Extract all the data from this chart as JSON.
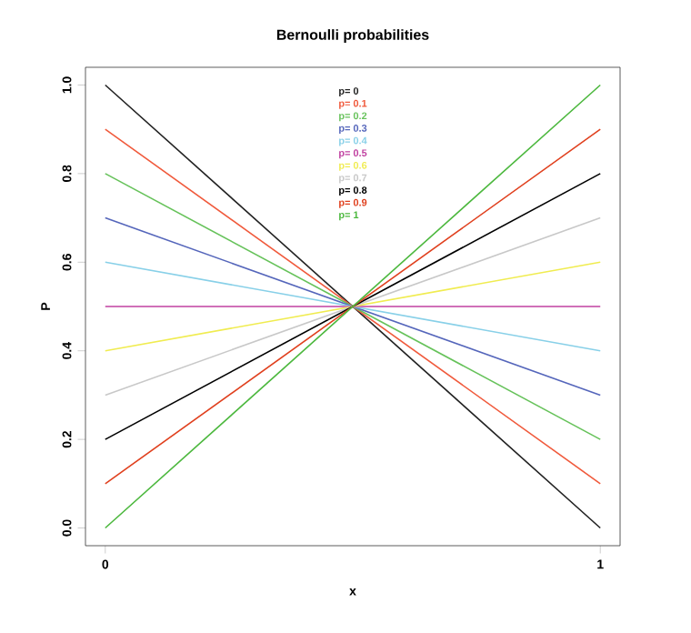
{
  "chart_data": {
    "type": "line",
    "title": "Bernoulli probabilities",
    "xlabel": "x",
    "ylabel": "P",
    "x": [
      0,
      1
    ],
    "xlim": [
      -0.04,
      1.04
    ],
    "ylim": [
      -0.04,
      1.04
    ],
    "xticks": [
      0,
      1
    ],
    "yticks": [
      {
        "value": 0,
        "label": "0.0"
      },
      0.2,
      0.4,
      0.6,
      0.8,
      {
        "value": 1,
        "label": "1.0"
      }
    ],
    "legend": "top",
    "marker": "none",
    "line_style": "solid",
    "series": [
      {
        "name": "p= 0",
        "color": "#222222",
        "values": [
          1,
          0
        ]
      },
      {
        "name": "p= 0.1",
        "color": "#f05a3c",
        "values": [
          0.9,
          0.1
        ]
      },
      {
        "name": "p= 0.2",
        "color": "#66c25a",
        "values": [
          0.8,
          0.2
        ]
      },
      {
        "name": "p= 0.3",
        "color": "#5566bb",
        "values": [
          0.7,
          0.3
        ]
      },
      {
        "name": "p= 0.4",
        "color": "#88d0e8",
        "values": [
          0.6,
          0.4
        ]
      },
      {
        "name": "p= 0.5",
        "color": "#c040a0",
        "values": [
          0.5,
          0.5
        ]
      },
      {
        "name": "p= 0.6",
        "color": "#f0ec50",
        "values": [
          0.4,
          0.6
        ]
      },
      {
        "name": "p= 0.7",
        "color": "#c8c8c8",
        "values": [
          0.3,
          0.7
        ]
      },
      {
        "name": "p= 0.8",
        "color": "#000000",
        "values": [
          0.2,
          0.8
        ]
      },
      {
        "name": "p= 0.9",
        "color": "#e0401e",
        "values": [
          0.1,
          0.9
        ]
      },
      {
        "name": "p= 1",
        "color": "#4cb83e",
        "values": [
          0,
          1
        ]
      }
    ]
  }
}
